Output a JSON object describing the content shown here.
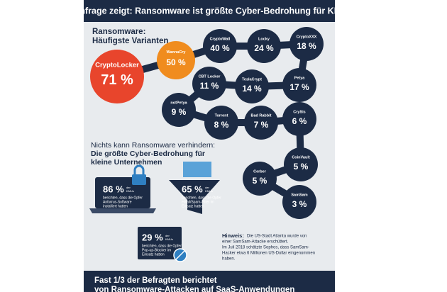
{
  "header": {
    "title": "Umfrage zeigt: Ransomware ist größte Cyber-Bedrohung für KMU"
  },
  "variants_section": {
    "heading": [
      "Ransomware:",
      "Häufigste Varianten"
    ]
  },
  "variants": [
    {
      "name": "CryptoLocker",
      "value": "71 %"
    },
    {
      "name": "WannaCry",
      "value": "50 %"
    },
    {
      "name": "CryptoWall",
      "value": "40 %"
    },
    {
      "name": "Locky",
      "value": "24 %"
    },
    {
      "name": "CryptoXXX",
      "value": "18 %"
    },
    {
      "name": "Petya",
      "value": "17 %"
    },
    {
      "name": "TeslaCrypt",
      "value": "14 %"
    },
    {
      "name": "CBT Locker",
      "value": "11 %"
    },
    {
      "name": "notPetya",
      "value": "9 %"
    },
    {
      "name": "Torrent",
      "value": "8 %"
    },
    {
      "name": "Bad Rabbit",
      "value": "7 %"
    },
    {
      "name": "CrySis",
      "value": "6 %"
    },
    {
      "name": "CoinVault",
      "value": "5 %"
    },
    {
      "name": "Cerber",
      "value": "5 %"
    },
    {
      "name": "SamSam",
      "value": "3 %"
    }
  ],
  "prevention_section": {
    "intro": "Nichts kann Ransomware verhindern:",
    "heading": [
      "Die größte Cyber-Bedrohung für",
      "kleine Unternehmen"
    ]
  },
  "stats": [
    {
      "value": "86 %",
      "unit": [
        "der",
        "KMUs"
      ],
      "text": [
        "berichten, dass die Opfer",
        "Antivirus-Software",
        "installiert hatten"
      ]
    },
    {
      "value": "65 %",
      "unit": [
        "der",
        "KMUs"
      ],
      "text": [
        "berichten, dass die Opfer",
        "eMail/Spam-Filter im",
        "Einsatz hatten"
      ]
    },
    {
      "value": "29 %",
      "unit": [
        "der",
        "KMUs"
      ],
      "text": [
        "berichten, dass die Opfer",
        "Pop-up-Blocker im",
        "Einsatz hatten"
      ]
    }
  ],
  "note": {
    "label": "Hinweis:",
    "lines": [
      "Die US-Stadt Atlanta wurde von",
      "einer SamSam-Attacke erschüttert.",
      "Im Juli 2018 schätzte Sophos, dass SamSam-",
      "Hacker etwa 6 Millionen US-Dollar eingenommen",
      "haben."
    ]
  },
  "footer": {
    "lines": [
      "Fast 1/3 der Befragten berichtet",
      "von Ransomware-Attacken auf SaaS-Anwendungen"
    ]
  }
}
